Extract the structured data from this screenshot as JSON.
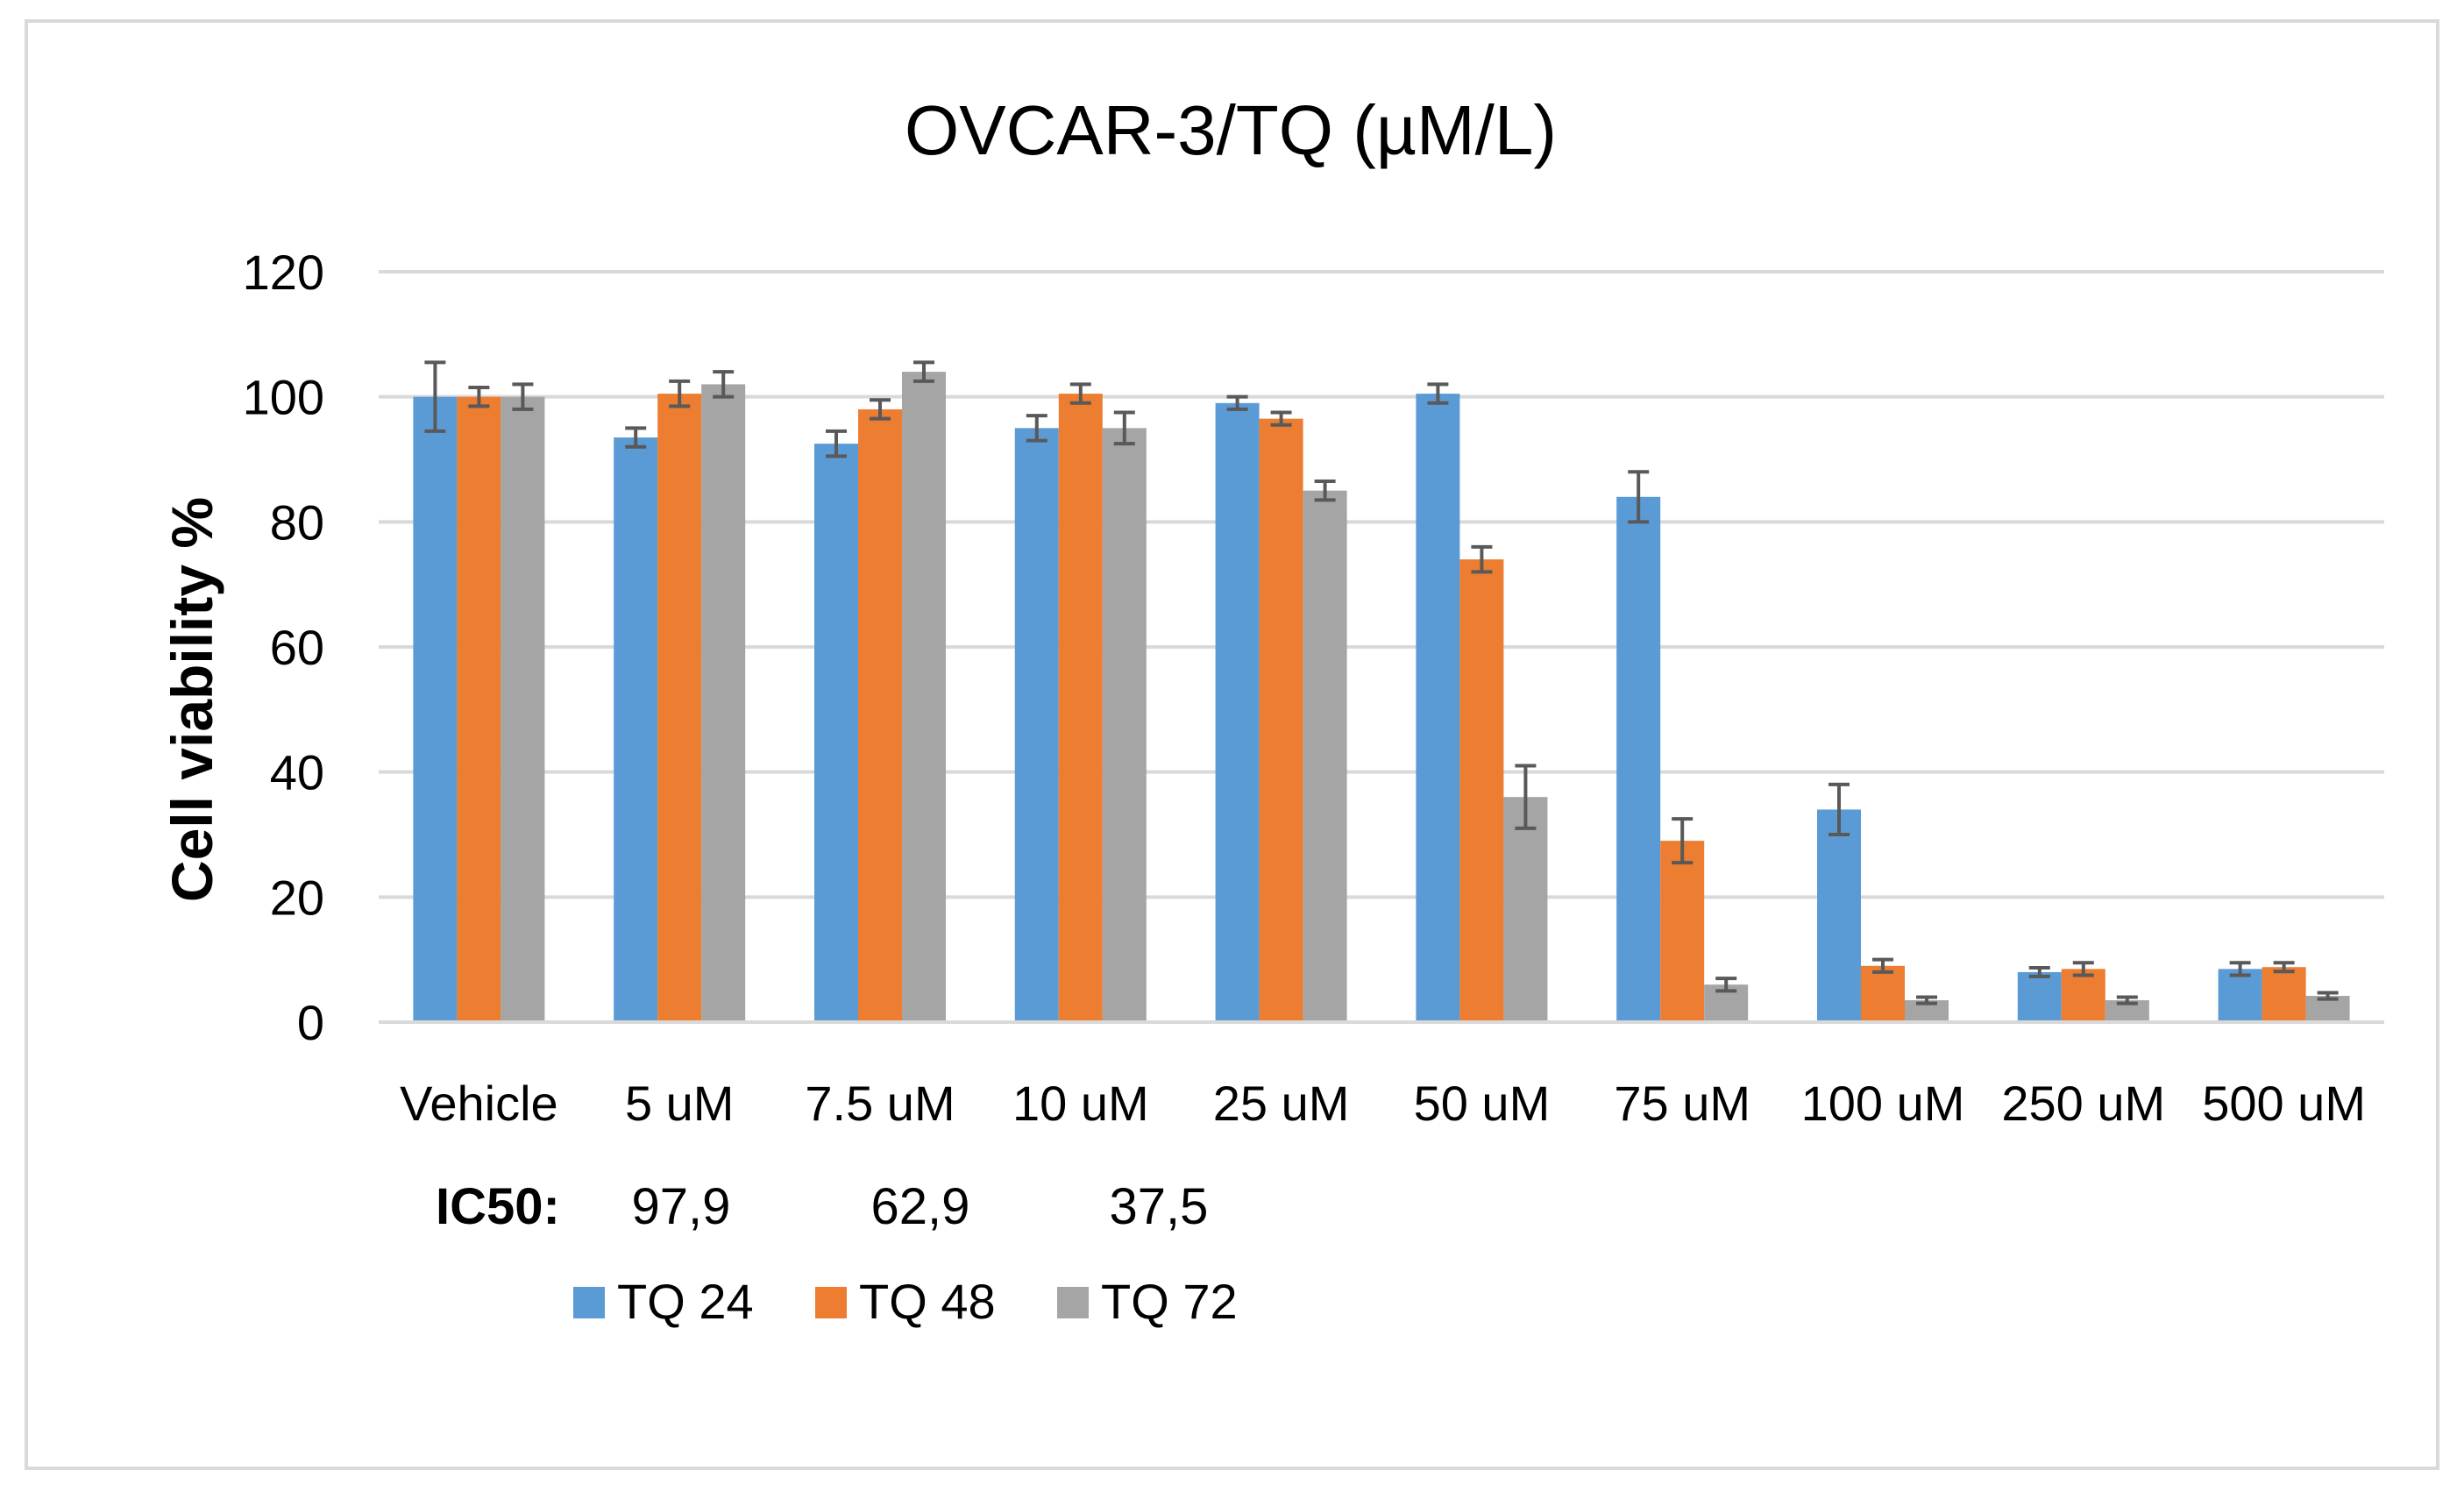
{
  "chart_data": {
    "type": "bar",
    "title": "OVCAR-3/TQ (µM/L)",
    "xlabel": "",
    "ylabel": "Cell viability %",
    "ylim": [
      0,
      120
    ],
    "yticks": [
      0,
      20,
      40,
      60,
      80,
      100,
      120
    ],
    "ytick_labels": [
      "0",
      "20",
      "40",
      "60",
      "80",
      "100",
      "120"
    ],
    "grid": true,
    "legend_position": "bottom",
    "categories": [
      "Vehicle",
      "5 uM",
      "7.5 uM",
      "10 uM",
      "25 uM",
      "50 uM",
      "75 uM",
      "100 uM",
      "250 uM",
      "500 uM"
    ],
    "series": [
      {
        "name": "TQ 24",
        "color": "#5b9bd5",
        "values": [
          100,
          93.5,
          92.5,
          95,
          99,
          100.5,
          84,
          34,
          8,
          8.5
        ],
        "errors": [
          5.5,
          1.5,
          2,
          2,
          1,
          1.5,
          4,
          4,
          0.7,
          1
        ]
      },
      {
        "name": "TQ 48",
        "color": "#ed7d31",
        "values": [
          100,
          100.5,
          98,
          100.5,
          96.5,
          74,
          29,
          9,
          8.5,
          8.8
        ],
        "errors": [
          1.5,
          2,
          1.5,
          1.5,
          1,
          2,
          3.5,
          1,
          1,
          0.7
        ]
      },
      {
        "name": "TQ 72",
        "color": "#a5a5a5",
        "values": [
          100,
          102,
          104,
          95,
          85,
          36,
          6,
          3.5,
          3.5,
          4.2
        ],
        "errors": [
          2,
          2,
          1.5,
          2.5,
          1.5,
          5,
          1,
          0.5,
          0.5,
          0.5
        ]
      }
    ],
    "ic50": {
      "label": "IC50:",
      "values": [
        "97,9",
        "62,9",
        "37,5"
      ]
    }
  }
}
